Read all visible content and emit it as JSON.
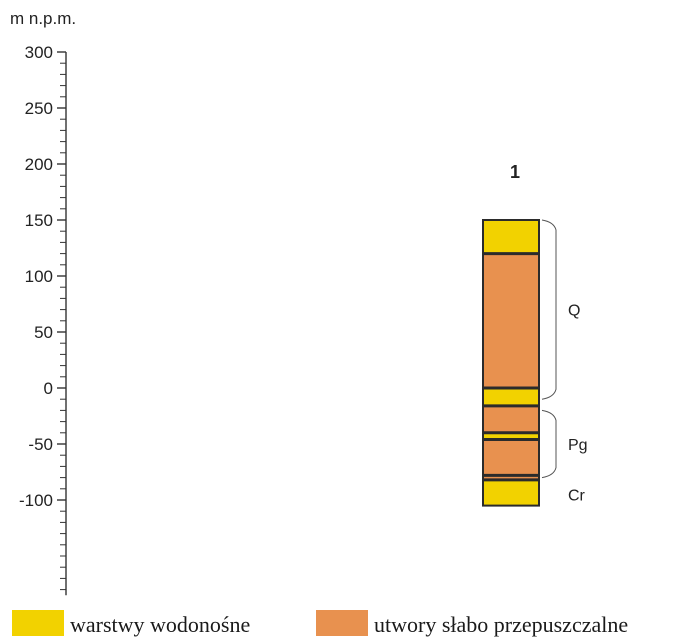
{
  "chart_data": {
    "type": "stratigraphic-column",
    "unit_label": "m n.p.m.",
    "ylim": [
      -185,
      300
    ],
    "tick_labels": [
      300,
      250,
      200,
      150,
      100,
      50,
      0,
      -50,
      -100
    ],
    "minor_tick_step": 10,
    "borehole_label": "1",
    "top": 150,
    "bottom": -105,
    "layers": [
      {
        "top": 150,
        "bottom": 120,
        "kind": "aquifer"
      },
      {
        "top": 120,
        "bottom": 0,
        "kind": "semipermeable"
      },
      {
        "top": 0,
        "bottom": -16,
        "kind": "aquifer"
      },
      {
        "top": -16,
        "bottom": -40,
        "kind": "semipermeable"
      },
      {
        "top": -40,
        "bottom": -46,
        "kind": "aquifer"
      },
      {
        "top": -46,
        "bottom": -78,
        "kind": "semipermeable"
      },
      {
        "top": -78,
        "bottom": -82,
        "kind": "semipermeable"
      },
      {
        "top": -82,
        "bottom": -105,
        "kind": "aquifer"
      }
    ],
    "boundaries": [
      120,
      0,
      -16,
      -40,
      -46,
      -78,
      -82
    ],
    "stratigraphy": [
      {
        "label": "Q",
        "top": 150,
        "bottom": -10
      },
      {
        "label": "Pg",
        "top": -20,
        "bottom": -80
      },
      {
        "label": "Cr",
        "top": -85,
        "bottom": -105
      }
    ]
  },
  "legend": [
    {
      "kind": "aquifer",
      "label": "warstwy wodonośne"
    },
    {
      "kind": "semipermeable",
      "label": "utwory słabo przepuszczalne"
    }
  ],
  "colors": {
    "aquifer": "#f2d200",
    "semipermeable": "#e8914f",
    "outline": "#2b2b2b",
    "axis": "#333333"
  }
}
